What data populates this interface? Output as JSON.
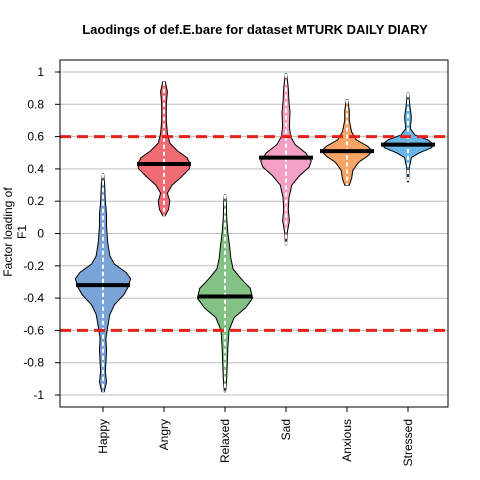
{
  "chart_data": {
    "type": "violin",
    "title": "Laodings of def.E.bare for dataset MTURK DAILY DIARY",
    "ylabel": "Factor loading of F1",
    "xlabel": "",
    "ylim": [
      -1.05,
      1.05
    ],
    "yticks": [
      -1,
      -0.8,
      -0.6,
      -0.4,
      -0.2,
      0,
      0.2,
      0.4,
      0.6,
      0.8,
      1
    ],
    "grid": true,
    "reference_lines": [
      0.6,
      -0.6
    ],
    "reference_line_color": "#e8201a",
    "categories": [
      "Happy",
      "Angry",
      "Relaxed",
      "Sad",
      "Anxious",
      "Stressed"
    ],
    "series": [
      {
        "category": "Happy",
        "color": "#7aa4d8",
        "mean": -0.32,
        "min": -0.98,
        "max": 0.37,
        "profile": [
          [
            -0.98,
            0.01
          ],
          [
            -0.92,
            0.03
          ],
          [
            -0.85,
            0.02
          ],
          [
            -0.8,
            0.025
          ],
          [
            -0.72,
            0.03
          ],
          [
            -0.65,
            0.025
          ],
          [
            -0.58,
            0.04
          ],
          [
            -0.5,
            0.06
          ],
          [
            -0.44,
            0.1
          ],
          [
            -0.38,
            0.18
          ],
          [
            -0.33,
            0.22
          ],
          [
            -0.28,
            0.24
          ],
          [
            -0.24,
            0.2
          ],
          [
            -0.19,
            0.1
          ],
          [
            -0.14,
            0.06
          ],
          [
            -0.05,
            0.04
          ],
          [
            0.05,
            0.03
          ],
          [
            0.12,
            0.03
          ],
          [
            0.2,
            0.02
          ],
          [
            0.3,
            0.015
          ],
          [
            0.37,
            0.005
          ]
        ]
      },
      {
        "category": "Angry",
        "color": "#f06c74",
        "mean": 0.43,
        "min": 0.11,
        "max": 0.94,
        "profile": [
          [
            0.11,
            0.01
          ],
          [
            0.15,
            0.04
          ],
          [
            0.2,
            0.05
          ],
          [
            0.25,
            0.03
          ],
          [
            0.3,
            0.07
          ],
          [
            0.35,
            0.15
          ],
          [
            0.4,
            0.22
          ],
          [
            0.43,
            0.23
          ],
          [
            0.47,
            0.2
          ],
          [
            0.51,
            0.12
          ],
          [
            0.56,
            0.05
          ],
          [
            0.62,
            0.03
          ],
          [
            0.7,
            0.02
          ],
          [
            0.8,
            0.02
          ],
          [
            0.88,
            0.03
          ],
          [
            0.94,
            0.01
          ]
        ]
      },
      {
        "category": "Relaxed",
        "color": "#84c184",
        "mean": -0.39,
        "min": -0.98,
        "max": 0.24,
        "profile": [
          [
            -0.98,
            0.005
          ],
          [
            -0.9,
            0.015
          ],
          [
            -0.8,
            0.02
          ],
          [
            -0.7,
            0.025
          ],
          [
            -0.6,
            0.035
          ],
          [
            -0.52,
            0.08
          ],
          [
            -0.46,
            0.18
          ],
          [
            -0.4,
            0.24
          ],
          [
            -0.34,
            0.22
          ],
          [
            -0.28,
            0.14
          ],
          [
            -0.22,
            0.07
          ],
          [
            -0.15,
            0.05
          ],
          [
            -0.08,
            0.04
          ],
          [
            0.0,
            0.025
          ],
          [
            0.1,
            0.015
          ],
          [
            0.2,
            0.01
          ],
          [
            0.24,
            0.005
          ]
        ]
      },
      {
        "category": "Sad",
        "color": "#f4a0c4",
        "mean": 0.47,
        "min": -0.07,
        "max": 0.99,
        "profile": [
          [
            -0.07,
            0.005
          ],
          [
            0.0,
            0.01
          ],
          [
            0.08,
            0.03
          ],
          [
            0.15,
            0.02
          ],
          [
            0.22,
            0.025
          ],
          [
            0.3,
            0.05
          ],
          [
            0.36,
            0.12
          ],
          [
            0.41,
            0.2
          ],
          [
            0.45,
            0.22
          ],
          [
            0.5,
            0.17
          ],
          [
            0.55,
            0.08
          ],
          [
            0.6,
            0.04
          ],
          [
            0.66,
            0.03
          ],
          [
            0.75,
            0.035
          ],
          [
            0.82,
            0.025
          ],
          [
            0.9,
            0.02
          ],
          [
            0.99,
            0.005
          ]
        ]
      },
      {
        "category": "Anxious",
        "color": "#f8a466",
        "mean": 0.51,
        "min": 0.3,
        "max": 0.83,
        "profile": [
          [
            0.3,
            0.02
          ],
          [
            0.34,
            0.04
          ],
          [
            0.39,
            0.05
          ],
          [
            0.44,
            0.1
          ],
          [
            0.48,
            0.18
          ],
          [
            0.51,
            0.22
          ],
          [
            0.54,
            0.18
          ],
          [
            0.58,
            0.08
          ],
          [
            0.63,
            0.04
          ],
          [
            0.7,
            0.02
          ],
          [
            0.76,
            0.02
          ],
          [
            0.83,
            0.005
          ]
        ]
      },
      {
        "category": "Stressed",
        "color": "#6ab6e8",
        "mean": 0.55,
        "min": 0.32,
        "max": 0.87,
        "profile": [
          [
            0.32,
            0.005
          ],
          [
            0.4,
            0.01
          ],
          [
            0.47,
            0.03
          ],
          [
            0.5,
            0.1
          ],
          [
            0.53,
            0.2
          ],
          [
            0.55,
            0.23
          ],
          [
            0.58,
            0.17
          ],
          [
            0.61,
            0.06
          ],
          [
            0.65,
            0.02
          ],
          [
            0.72,
            0.03
          ],
          [
            0.8,
            0.015
          ],
          [
            0.87,
            0.005
          ]
        ]
      }
    ]
  }
}
